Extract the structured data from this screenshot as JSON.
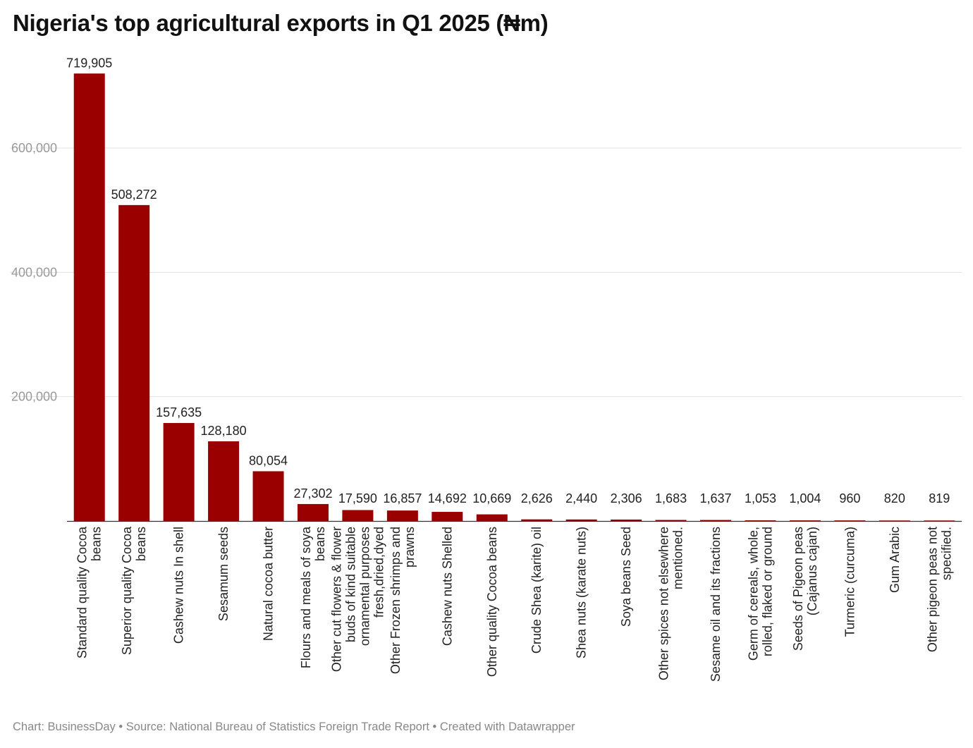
{
  "title": "Nigeria's top agricultural exports in Q1 2025 (₦m)",
  "footer": {
    "chart_by": "Chart: BusinessDay",
    "separator": " • ",
    "source": "Source: National Bureau of Statistics Foreign Trade Report",
    "created": "Created with Datawrapper"
  },
  "chart_data": {
    "type": "bar",
    "title": "Nigeria's top agricultural exports in Q1 2025 (₦m)",
    "xlabel": "",
    "ylabel": "",
    "ylim": [
      0,
      720000
    ],
    "grid": true,
    "yticks": [
      200000,
      400000,
      600000
    ],
    "ytick_labels": [
      "200,000",
      "400,000",
      "600,000"
    ],
    "color": "#9b0000",
    "categories": [
      [
        "Standard quality Cocoa",
        "beans"
      ],
      [
        "Superior quality Cocoa",
        "beans"
      ],
      [
        "Cashew nuts In shell"
      ],
      [
        "Sesamum seeds"
      ],
      [
        "Natural cocoa butter"
      ],
      [
        "Flours and meals of soya",
        "beans"
      ],
      [
        "Other cut flowers & flower",
        "buds of kind suitable",
        "ornamental purposes",
        "fresh,dried,dyed"
      ],
      [
        "Other Frozen shrimps and",
        "prawns"
      ],
      [
        "Cashew nuts Shelled"
      ],
      [
        "Other quality Cocoa beans"
      ],
      [
        "Crude Shea (karite) oil"
      ],
      [
        "Shea nuts (karate nuts)"
      ],
      [
        "Soya beans Seed"
      ],
      [
        "Other spices not elsewhere",
        "mentioned."
      ],
      [
        "Sesame oil and its fractions"
      ],
      [
        "Germ of cereals, whole,",
        "rolled, flaked or ground"
      ],
      [
        "Seeds of Pigeon peas",
        "(Cajanus cajan)"
      ],
      [
        "Turmeric (curcuma)"
      ],
      [
        "Gum Arabic"
      ],
      [
        "Other pigeon peas not",
        "specified."
      ]
    ],
    "values": [
      719905,
      508272,
      157635,
      128180,
      80054,
      27302,
      17590,
      16857,
      14692,
      10669,
      2626,
      2440,
      2306,
      1683,
      1637,
      1053,
      1004,
      960,
      820,
      819
    ],
    "value_labels": [
      "719,905",
      "508,272",
      "157,635",
      "128,180",
      "80,054",
      "27,302",
      "17,590",
      "16,857",
      "14,692",
      "10,669",
      "2,626",
      "2,440",
      "2,306",
      "1,683",
      "1,637",
      "1,053",
      "1,004",
      "960",
      "820",
      "819"
    ]
  }
}
